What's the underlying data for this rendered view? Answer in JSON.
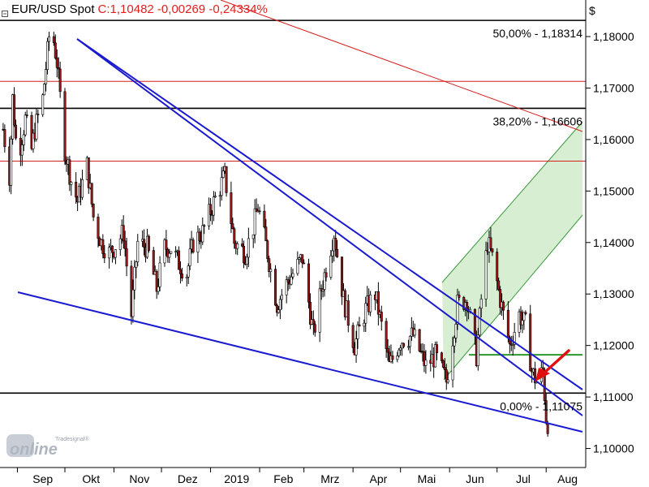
{
  "header": {
    "instrument": "EUR/USD Spot",
    "quote": "C:1,10482 -0,00269 -0,24334%"
  },
  "logo": {
    "small": "Tradesignal®",
    "main": "online"
  },
  "chart_data": {
    "type": "candlestick",
    "currency_label": "$",
    "x_tick_labels": [
      "Sep",
      "Okt",
      "Nov",
      "Dez",
      "2019",
      "Feb",
      "Mrz",
      "Apr",
      "Mai",
      "Jun",
      "Jul",
      "Aug"
    ],
    "y_tick_labels": [
      "1,18000",
      "1,17000",
      "1,16000",
      "1,15000",
      "1,14000",
      "1,13000",
      "1,12000",
      "1,11000",
      "1,10000"
    ],
    "ylim": [
      1.0963,
      1.1871
    ],
    "fib_levels": [
      {
        "label": "50,00% - 1,18314",
        "value": 1.18314
      },
      {
        "label": "38,20% - 1,16606",
        "value": 1.16606
      },
      {
        "label": "0,00% - 1,11075",
        "value": 1.11075
      }
    ],
    "red_horizontal_levels": [
      1.1713,
      1.1558
    ],
    "green_horizontal_level": 1.1182,
    "price_path": [
      [
        "2018-08-23",
        1.162
      ],
      [
        "2018-08-27",
        1.153
      ],
      [
        "2018-08-29",
        1.168
      ],
      [
        "2018-08-31",
        1.16
      ],
      [
        "2018-09-03",
        1.159
      ],
      [
        "2018-09-06",
        1.164
      ],
      [
        "2018-09-10",
        1.158
      ],
      [
        "2018-09-12",
        1.162
      ],
      [
        "2018-09-17",
        1.168
      ],
      [
        "2018-09-21",
        1.18
      ],
      [
        "2018-09-24",
        1.179
      ],
      [
        "2018-09-26",
        1.175
      ],
      [
        "2018-10-01",
        1.158
      ],
      [
        "2018-10-05",
        1.152
      ],
      [
        "2018-10-09",
        1.148
      ],
      [
        "2018-10-15",
        1.155
      ],
      [
        "2018-10-19",
        1.145
      ],
      [
        "2018-10-24",
        1.14
      ],
      [
        "2018-10-29",
        1.138
      ],
      [
        "2018-11-01",
        1.139
      ],
      [
        "2018-11-07",
        1.142
      ],
      [
        "2018-11-12",
        1.126
      ],
      [
        "2018-11-16",
        1.14
      ],
      [
        "2018-11-22",
        1.139
      ],
      [
        "2018-11-28",
        1.131
      ],
      [
        "2018-12-03",
        1.139
      ],
      [
        "2018-12-07",
        1.139
      ],
      [
        "2018-12-12",
        1.136
      ],
      [
        "2018-12-17",
        1.134
      ],
      [
        "2018-12-21",
        1.14
      ],
      [
        "2018-12-27",
        1.142
      ],
      [
        "2019-01-02",
        1.147
      ],
      [
        "2019-01-10",
        1.153
      ],
      [
        "2019-01-16",
        1.14
      ],
      [
        "2019-01-23",
        1.138
      ],
      [
        "2019-01-28",
        1.143
      ],
      [
        "2019-01-31",
        1.147
      ],
      [
        "2019-02-06",
        1.138
      ],
      [
        "2019-02-12",
        1.128
      ],
      [
        "2019-02-18",
        1.132
      ],
      [
        "2019-02-22",
        1.134
      ],
      [
        "2019-02-28",
        1.137
      ],
      [
        "2019-03-07",
        1.122
      ],
      [
        "2019-03-12",
        1.131
      ],
      [
        "2019-03-20",
        1.142
      ],
      [
        "2019-03-26",
        1.129
      ],
      [
        "2019-04-02",
        1.12
      ],
      [
        "2019-04-09",
        1.127
      ],
      [
        "2019-04-15",
        1.13
      ],
      [
        "2019-04-24",
        1.116
      ],
      [
        "2019-05-01",
        1.121
      ],
      [
        "2019-05-09",
        1.122
      ],
      [
        "2019-05-17",
        1.116
      ],
      [
        "2019-05-23",
        1.118
      ],
      [
        "2019-05-30",
        1.113
      ],
      [
        "2019-06-06",
        1.128
      ],
      [
        "2019-06-12",
        1.129
      ],
      [
        "2019-06-18",
        1.118
      ],
      [
        "2019-06-21",
        1.129
      ],
      [
        "2019-06-25",
        1.14
      ],
      [
        "2019-06-28",
        1.137
      ],
      [
        "2019-07-03",
        1.129
      ],
      [
        "2019-07-09",
        1.12
      ],
      [
        "2019-07-15",
        1.126
      ],
      [
        "2019-07-19",
        1.124
      ],
      [
        "2019-07-23",
        1.115
      ],
      [
        "2019-07-26",
        1.113
      ],
      [
        "2019-07-30",
        1.115
      ],
      [
        "2019-08-01",
        1.106
      ],
      [
        "2019-08-02",
        1.105
      ]
    ]
  }
}
